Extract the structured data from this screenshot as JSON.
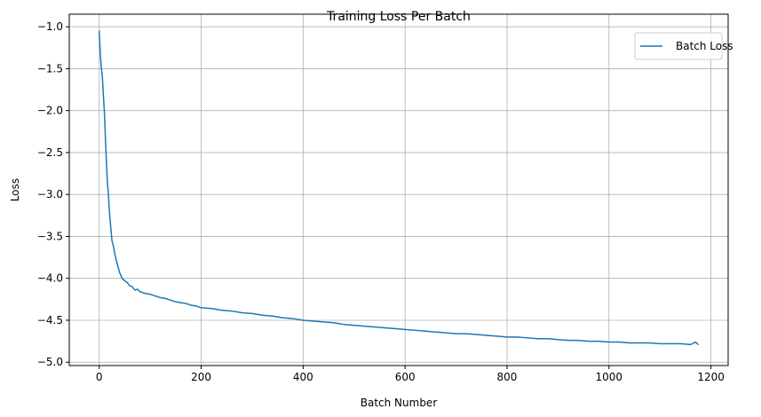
{
  "chart_data": {
    "type": "line",
    "title": "Training Loss Per Batch",
    "xlabel": "Batch Number",
    "ylabel": "Loss",
    "xlim": [
      -58.75,
      1233.75
    ],
    "ylim": [
      -5.04,
      -0.85
    ],
    "xticks": [
      0,
      200,
      400,
      600,
      800,
      1000,
      1200
    ],
    "yticks": [
      -5.0,
      -4.5,
      -4.0,
      -3.5,
      -3.0,
      -2.5,
      -2.0,
      -1.5,
      -1.0
    ],
    "xtick_labels": [
      "0",
      "200",
      "400",
      "600",
      "800",
      "1000",
      "1200"
    ],
    "ytick_labels": [
      "−5.0",
      "−4.5",
      "−4.0",
      "−3.5",
      "−3.0",
      "−2.5",
      "−2.0",
      "−1.5",
      "−1.0"
    ],
    "grid": true,
    "legend_position": "upper right",
    "series": [
      {
        "name": "Batch Loss",
        "color": "#1f77b4",
        "x": [
          0,
          2,
          4,
          6,
          8,
          10,
          12,
          14,
          16,
          18,
          20,
          22,
          25,
          28,
          31,
          35,
          40,
          45,
          50,
          55,
          60,
          65,
          70,
          75,
          80,
          90,
          100,
          110,
          120,
          130,
          140,
          150,
          160,
          170,
          180,
          190,
          200,
          220,
          240,
          260,
          280,
          300,
          320,
          340,
          360,
          380,
          400,
          420,
          440,
          460,
          480,
          500,
          520,
          540,
          560,
          580,
          600,
          620,
          640,
          660,
          680,
          700,
          720,
          740,
          760,
          780,
          800,
          820,
          840,
          860,
          880,
          900,
          920,
          940,
          960,
          980,
          1000,
          1020,
          1040,
          1060,
          1080,
          1100,
          1120,
          1140,
          1160,
          1170,
          1175
        ],
        "y": [
          -1.05,
          -1.3,
          -1.48,
          -1.58,
          -1.8,
          -2.0,
          -2.3,
          -2.6,
          -2.85,
          -3.0,
          -3.2,
          -3.35,
          -3.55,
          -3.62,
          -3.72,
          -3.82,
          -3.93,
          -4.0,
          -4.03,
          -4.05,
          -4.09,
          -4.1,
          -4.14,
          -4.13,
          -4.16,
          -4.18,
          -4.19,
          -4.21,
          -4.23,
          -4.24,
          -4.26,
          -4.28,
          -4.29,
          -4.3,
          -4.32,
          -4.33,
          -4.35,
          -4.36,
          -4.38,
          -4.39,
          -4.41,
          -4.42,
          -4.44,
          -4.45,
          -4.47,
          -4.48,
          -4.5,
          -4.51,
          -4.52,
          -4.53,
          -4.55,
          -4.56,
          -4.57,
          -4.58,
          -4.59,
          -4.6,
          -4.61,
          -4.62,
          -4.63,
          -4.64,
          -4.65,
          -4.66,
          -4.66,
          -4.67,
          -4.68,
          -4.69,
          -4.7,
          -4.7,
          -4.71,
          -4.72,
          -4.72,
          -4.73,
          -4.74,
          -4.74,
          -4.75,
          -4.75,
          -4.76,
          -4.76,
          -4.77,
          -4.77,
          -4.77,
          -4.78,
          -4.78,
          -4.78,
          -4.79,
          -4.76,
          -4.79
        ]
      }
    ]
  }
}
